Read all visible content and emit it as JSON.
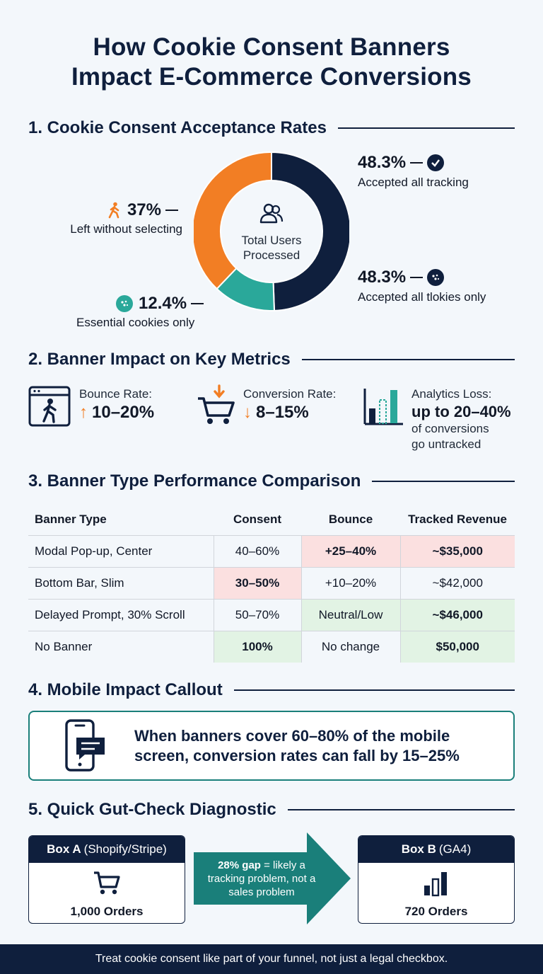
{
  "title_line1": "How Cookie Consent Banners",
  "title_line2": "Impact E-Commerce Conversions",
  "colors": {
    "navy": "#0f1f3d",
    "orange": "#f27e24",
    "teal": "#2aa89a",
    "red": "#c62828",
    "green": "#2e7d32"
  },
  "section1": {
    "heading": "1. Cookie Consent Acceptance Rates",
    "center_label": "Total Users Processed",
    "center_icon": "users-icon",
    "callouts": {
      "accepted_all": {
        "pct": "48.3%",
        "label": "Accepted all tracking",
        "icon": "check-circle-icon"
      },
      "accepted_cookies": {
        "pct": "48.3%",
        "label": "Accepted all tlokies only",
        "icon": "cookie-icon"
      },
      "essential": {
        "pct": "12.4%",
        "label": "Essential cookies only",
        "icon": "cookie-icon"
      },
      "left": {
        "pct": "37%",
        "label": "Left without selecting",
        "icon": "walking-person-icon"
      }
    }
  },
  "chart_data": {
    "type": "pie",
    "donut": true,
    "slices": [
      {
        "label": "Accepted all tracking",
        "value": 48.3,
        "color": "#0f1f3d"
      },
      {
        "label": "Essential cookies only",
        "value": 12.4,
        "color": "#2aa89a"
      },
      {
        "label": "Left without selecting",
        "value": 37,
        "color": "#f27e24"
      }
    ]
  },
  "section2": {
    "heading": "2. Banner Impact on Key Metrics",
    "bounce": {
      "label": "Bounce Rate:",
      "arrow": "↑",
      "value": "10–20%",
      "icon": "browser-exit-icon"
    },
    "conversion": {
      "label": "Conversion Rate:",
      "arrow": "↓",
      "value": "8–15%",
      "icon": "cart-down-icon"
    },
    "analytics": {
      "label": "Analytics Loss:",
      "value": "up to 20–40%",
      "sub1": "of conversions",
      "sub2": "go untracked",
      "icon": "bar-chart-icon"
    }
  },
  "section3": {
    "heading": "3. Banner Type Performance Comparison",
    "columns": [
      "Banner Type",
      "Consent",
      "Bounce",
      "Tracked Revenue"
    ],
    "rows": [
      [
        "Modal Pop-up, Center",
        "40–60%",
        "+25–40%",
        "~$35,000"
      ],
      [
        "Bottom Bar, Slim",
        "30–50%",
        "+10–20%",
        "~$42,000"
      ],
      [
        "Delayed Prompt, 30% Scroll",
        "50–70%",
        "Neutral/Low",
        "~$46,000"
      ],
      [
        "No Banner",
        "100%",
        "No change",
        "$50,000"
      ]
    ]
  },
  "section4": {
    "heading": "4. Mobile Impact Callout",
    "text": "When banners cover 60–80% of the mobile screen, conversion rates can fall by 15–25%",
    "icon": "phone-message-icon"
  },
  "section5": {
    "heading": "5. Quick Gut-Check Diagnostic",
    "box_a": {
      "title_bold": "Box A",
      "title_rest": "(Shopify/Stripe)",
      "count": "1,000 Orders",
      "icon": "cart-icon"
    },
    "arrow": {
      "bold": "28% gap",
      "rest": "= likely a tracking problem, not a sales problem"
    },
    "box_b": {
      "title_bold": "Box B",
      "title_rest": "(GA4)",
      "count": "720 Orders",
      "icon": "bar-chart-icon"
    }
  },
  "footer": "Treat cookie consent like part of your funnel, not just a legal checkbox."
}
